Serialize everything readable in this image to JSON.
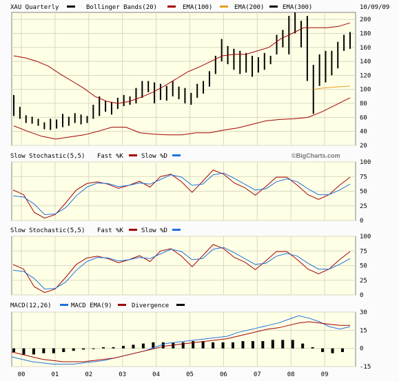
{
  "header": {
    "symbol": "XAU Quarterly",
    "bollinger": "Bollinger Bands(20)",
    "ema100": "EMA(100)",
    "ema200": "EMA(200)",
    "ema300": "EMA(300)",
    "date": "10/09/09"
  },
  "watermark": "©BigCharts.com",
  "colors": {
    "panel_bg": "#ffffe6",
    "grid": "#d8d8c0",
    "bars": "#000000",
    "bollinger": "#a00000",
    "ema200": "#e8a020",
    "fast": "#a00000",
    "slow": "#2070e0",
    "macd": "#2070e0",
    "macd_ema": "#a00000"
  },
  "chart_data": [
    {
      "type": "ohlc",
      "name": "price",
      "x": [
        "00",
        "01",
        "02",
        "03",
        "04",
        "05",
        "06",
        "07",
        "08",
        "09"
      ],
      "ylim": [
        20,
        210
      ],
      "yticks": [
        20,
        40,
        60,
        80,
        100,
        120,
        140,
        160,
        180,
        200
      ],
      "bars": [
        [
          92,
          62
        ],
        [
          75,
          58
        ],
        [
          63,
          52
        ],
        [
          61,
          51
        ],
        [
          58,
          48
        ],
        [
          53,
          43
        ],
        [
          58,
          42
        ],
        [
          57,
          44
        ],
        [
          65,
          46
        ],
        [
          61,
          48
        ],
        [
          66,
          52
        ],
        [
          64,
          50
        ],
        [
          62,
          52
        ],
        [
          78,
          58
        ],
        [
          90,
          62
        ],
        [
          84,
          68
        ],
        [
          82,
          64
        ],
        [
          88,
          72
        ],
        [
          92,
          76
        ],
        [
          90,
          78
        ],
        [
          102,
          80
        ],
        [
          112,
          88
        ],
        [
          112,
          96
        ],
        [
          110,
          80
        ],
        [
          108,
          85
        ],
        [
          105,
          84
        ],
        [
          112,
          90
        ],
        [
          104,
          86
        ],
        [
          102,
          80
        ],
        [
          95,
          78
        ],
        [
          108,
          88
        ],
        [
          112,
          94
        ],
        [
          126,
          104
        ],
        [
          148,
          122
        ],
        [
          172,
          140
        ],
        [
          162,
          136
        ],
        [
          158,
          128
        ],
        [
          155,
          122
        ],
        [
          152,
          124
        ],
        [
          148,
          118
        ],
        [
          146,
          124
        ],
        [
          152,
          128
        ],
        [
          148,
          136
        ],
        [
          178,
          150
        ],
        [
          185,
          160
        ],
        [
          205,
          150
        ],
        [
          210,
          180
        ],
        [
          198,
          160
        ],
        [
          205,
          112
        ],
        [
          135,
          65
        ],
        [
          150,
          105
        ],
        [
          155,
          110
        ],
        [
          155,
          120
        ],
        [
          168,
          130
        ],
        [
          178,
          155
        ],
        [
          182,
          158
        ]
      ],
      "bollinger_upper": [
        148,
        145,
        140,
        133,
        122,
        112,
        102,
        90,
        83,
        80,
        83,
        89,
        96,
        105,
        115,
        125,
        132,
        140,
        148,
        150,
        150,
        155,
        160,
        172,
        180,
        188,
        188,
        188,
        190,
        195
      ],
      "bollinger_lower": [
        48,
        40,
        33,
        29,
        32,
        35,
        40,
        46,
        46,
        38,
        36,
        35,
        35,
        38,
        38,
        42,
        45,
        50,
        55,
        57,
        58,
        60,
        68,
        78,
        88
      ],
      "ema200": [
        100,
        102,
        103,
        104,
        105
      ],
      "fast_k": [
        50,
        28,
        10,
        5,
        22,
        48,
        67,
        67,
        60,
        55,
        60,
        68,
        58,
        62,
        80,
        85,
        72,
        62,
        55,
        78,
        88,
        83,
        63,
        48,
        40,
        55,
        68,
        72,
        60,
        45,
        38,
        50,
        68,
        75
      ],
      "slow_d": [
        45,
        35,
        18,
        10,
        15,
        33,
        55,
        65,
        65,
        60,
        58,
        63,
        63,
        60,
        72,
        83,
        78,
        68,
        58,
        68,
        82,
        85,
        72,
        56,
        48,
        50,
        62,
        70,
        68,
        55,
        45,
        48,
        60,
        70
      ]
    },
    {
      "type": "line",
      "name": "Slow Stochastic(5,5)",
      "title": "Slow Stochastic(5,5)",
      "legend": [
        "Fast %K",
        "Slow %D"
      ],
      "ylim": [
        0,
        100
      ],
      "yticks": [
        0,
        25,
        50,
        75,
        100
      ],
      "series": [
        {
          "name": "Fast %K",
          "values": [
            52,
            44,
            14,
            4,
            10,
            30,
            52,
            63,
            66,
            62,
            55,
            60,
            67,
            57,
            75,
            79,
            66,
            48,
            67,
            86,
            79,
            64,
            56,
            43,
            58,
            74,
            74,
            60,
            44,
            36,
            44,
            60,
            74
          ]
        },
        {
          "name": "Slow %D",
          "values": [
            42,
            40,
            28,
            10,
            11,
            22,
            42,
            57,
            64,
            63,
            58,
            60,
            64,
            62,
            70,
            78,
            74,
            60,
            62,
            78,
            81,
            72,
            62,
            52,
            54,
            66,
            71,
            66,
            54,
            44,
            44,
            52,
            62
          ]
        }
      ]
    },
    {
      "type": "line",
      "name": "Slow Stochastic(5,5) #2",
      "title": "Slow Stochastic(5,5)",
      "legend": [
        "Fast %K",
        "Slow %D"
      ],
      "ylim": [
        0,
        100
      ],
      "yticks": [
        0,
        25,
        50,
        75,
        100
      ],
      "series": [
        {
          "name": "Fast %K",
          "values": [
            52,
            44,
            14,
            4,
            10,
            30,
            52,
            63,
            66,
            62,
            55,
            60,
            67,
            57,
            75,
            79,
            66,
            48,
            67,
            86,
            79,
            64,
            56,
            43,
            58,
            74,
            74,
            60,
            44,
            36,
            44,
            60,
            74
          ]
        },
        {
          "name": "Slow %D",
          "values": [
            42,
            40,
            28,
            10,
            11,
            22,
            42,
            57,
            64,
            63,
            58,
            60,
            64,
            62,
            70,
            78,
            74,
            60,
            62,
            78,
            81,
            72,
            62,
            52,
            54,
            66,
            71,
            66,
            54,
            44,
            44,
            52,
            62
          ]
        }
      ]
    },
    {
      "type": "bar+line",
      "name": "MACD(12,26)",
      "title": "MACD(12,26)",
      "legend": [
        "MACD",
        "EMA(9)",
        "Divergence"
      ],
      "ylim": [
        -15,
        30
      ],
      "yticks": [
        -15,
        0,
        15,
        30
      ],
      "macd": [
        -7,
        -9,
        -11,
        -12,
        -13,
        -13,
        -13,
        -12,
        -11,
        -10,
        -8,
        -6,
        -4,
        -2,
        1,
        4,
        5,
        6,
        7,
        8,
        9,
        10,
        13,
        15,
        17,
        19,
        21,
        24,
        27,
        25,
        22,
        18,
        16,
        18
      ],
      "ema9": [
        -3,
        -5,
        -7,
        -9,
        -10,
        -11,
        -11,
        -11,
        -10,
        -9,
        -8,
        -6,
        -4,
        -2,
        0,
        2,
        3,
        4,
        5,
        6,
        7,
        8,
        10,
        12,
        14,
        16,
        17,
        19,
        21,
        22,
        21,
        20,
        19,
        19
      ],
      "divergence": [
        -3,
        -5,
        -5,
        -4,
        -4,
        -3,
        -2,
        -1,
        0,
        1,
        1,
        2,
        3,
        4,
        5,
        5,
        5,
        5,
        6,
        6,
        5,
        5,
        5,
        6,
        6,
        6,
        7,
        7,
        7,
        4,
        1,
        -3,
        -4,
        -3
      ]
    }
  ]
}
